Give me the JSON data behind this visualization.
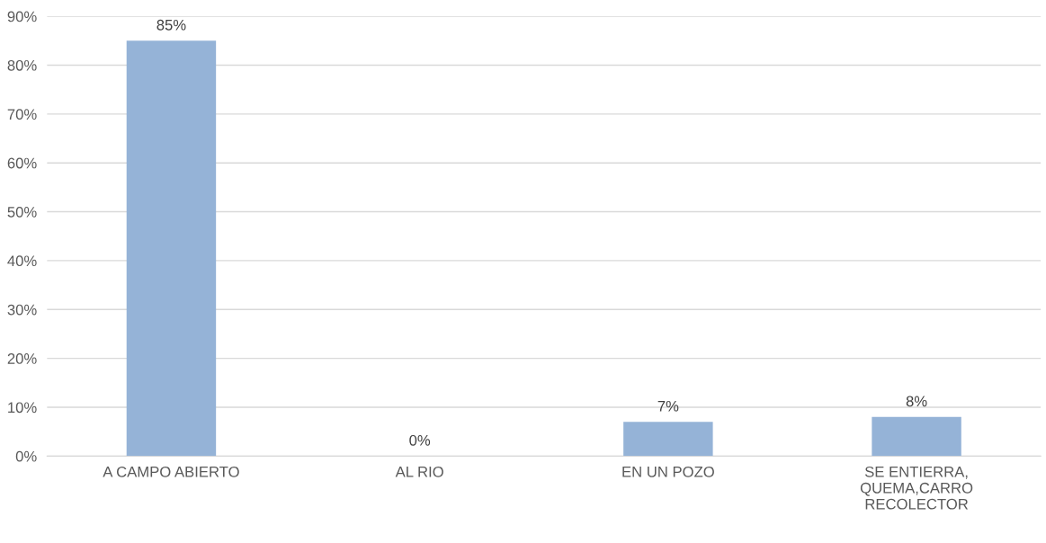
{
  "chart_data": {
    "type": "bar",
    "categories": [
      "A CAMPO ABIERTO",
      "AL RIO",
      "EN UN POZO",
      "SE ENTIERRA,\nQUEMA,CARRO\nRECOLECTOR"
    ],
    "values": [
      85,
      0,
      7,
      8
    ],
    "value_labels": [
      "85%",
      "0%",
      "7%",
      "8%"
    ],
    "color": "#95b3d7",
    "ylim": [
      0,
      90
    ],
    "yticks": [
      {
        "value": 0,
        "label": "0%"
      },
      {
        "value": 10,
        "label": "10%"
      },
      {
        "value": 20,
        "label": "20%"
      },
      {
        "value": 30,
        "label": "30%"
      },
      {
        "value": 40,
        "label": "40%"
      },
      {
        "value": 50,
        "label": "50%"
      },
      {
        "value": 60,
        "label": "60%"
      },
      {
        "value": 70,
        "label": "70%"
      },
      {
        "value": 80,
        "label": "80%"
      },
      {
        "value": 90,
        "label": "90%"
      }
    ],
    "grid": "y",
    "legend": false
  }
}
